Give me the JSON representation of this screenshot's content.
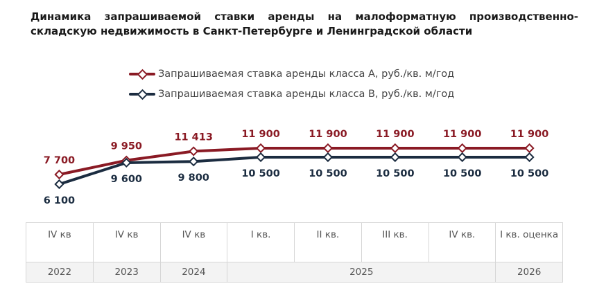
{
  "title": "Динамика запрашиваемой ставки аренды на малоформатную производственно-складскую недвижимость в Санкт-Петербурге и Ленинградской области",
  "colors": {
    "series_a": "#8a1a24",
    "series_b": "#1b2c40"
  },
  "chart_data": {
    "type": "line",
    "title": "Динамика запрашиваемой ставки аренды на малоформатную производственно-складскую недвижимость в Санкт-Петербурге и Ленинградской области",
    "categories": [
      "IV кв",
      "IV кв",
      "IV кв",
      "I кв.",
      "II кв.",
      "III кв.",
      "IV кв.",
      "I кв. оценка"
    ],
    "year_groups": [
      {
        "label": "2022",
        "span": 1
      },
      {
        "label": "2023",
        "span": 1
      },
      {
        "label": "2024",
        "span": 1
      },
      {
        "label": "2025",
        "span": 4
      },
      {
        "label": "2026",
        "span": 1
      }
    ],
    "series": [
      {
        "name": "Запрашиваемая ставка аренды класса А, руб./кв. м/год",
        "values": [
          7700,
          9950,
          11413,
          11900,
          11900,
          11900,
          11900,
          11900
        ],
        "labels": [
          "7 700",
          "9 950",
          "11 413",
          "11 900",
          "11 900",
          "11 900",
          "11 900",
          "11 900"
        ]
      },
      {
        "name": "Запрашиваемая ставка аренды класса В, руб./кв. м/год",
        "values": [
          6100,
          9600,
          9800,
          10500,
          10500,
          10500,
          10500,
          10500
        ],
        "labels": [
          "6 100",
          "9 600",
          "9 800",
          "10 500",
          "10 500",
          "10 500",
          "10 500",
          "10 500"
        ]
      }
    ],
    "legend_position": "top",
    "grid": false
  }
}
